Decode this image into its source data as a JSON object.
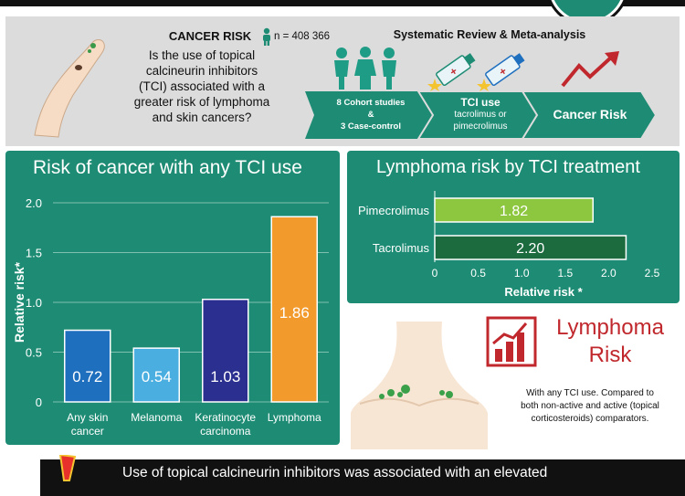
{
  "header": {
    "question_title": "CANCER RISK",
    "question_lines": [
      "Is the use of topical",
      "calcineurin inhibitors",
      "(TCI) associated with a",
      "greater risk of lymphoma",
      "and skin cancers?"
    ],
    "sample": "n = 408 366",
    "review_title": "Systematic Review & Meta-analysis",
    "flow": [
      {
        "lines": [
          "8 Cohort studies",
          "&",
          "3 Case-control"
        ]
      },
      {
        "lines": [
          "TCI use",
          "tacrolimus or",
          "pimecrolimus"
        ]
      },
      {
        "lines": [
          "Cancer Risk"
        ]
      }
    ]
  },
  "colors": {
    "green": "#1e8c74",
    "red": "#c0282d"
  },
  "lymphoma_box": {
    "title_lines": [
      "Lymphoma",
      "Risk"
    ],
    "note_lines": [
      "With any TCI use. Compared to",
      "both non-active and active (topical",
      "corticosteroids) comparators."
    ]
  },
  "footer": {
    "text": "Use of topical calcineurin inhibitors was associated with an elevated"
  },
  "chart_data": [
    {
      "type": "bar",
      "title": "Risk of cancer with any TCI use",
      "ylabel": "Relative risk*",
      "ylim": [
        0,
        2.0
      ],
      "yticks": [
        "0",
        "0.5",
        "1.0",
        "1.5",
        "2.0"
      ],
      "categories": [
        [
          "Any skin",
          "cancer"
        ],
        [
          "Melanoma"
        ],
        [
          "Keratinocyte",
          "carcinoma"
        ],
        [
          "Lymphoma"
        ]
      ],
      "values": [
        0.72,
        0.54,
        1.03,
        1.86
      ],
      "value_labels": [
        "0.72",
        "0.54",
        "1.03",
        "1.86"
      ],
      "colors": [
        "#1f6fbf",
        "#4aaee0",
        "#2b2f8f",
        "#f39a2c"
      ],
      "grid": true
    },
    {
      "type": "bar",
      "orientation": "horizontal",
      "title": "Lymphoma risk by TCI treatment",
      "xlabel": "Relative risk *",
      "xlim": [
        0,
        2.5
      ],
      "xticks": [
        "0",
        "0.5",
        "1.0",
        "1.5",
        "2.0",
        "2.5"
      ],
      "categories": [
        "Pimecrolimus",
        "Tacrolimus"
      ],
      "values": [
        1.82,
        2.2
      ],
      "value_labels": [
        "1.82",
        "2.20"
      ],
      "colors": [
        "#8dc63f",
        "#1b6b3f"
      ]
    }
  ]
}
